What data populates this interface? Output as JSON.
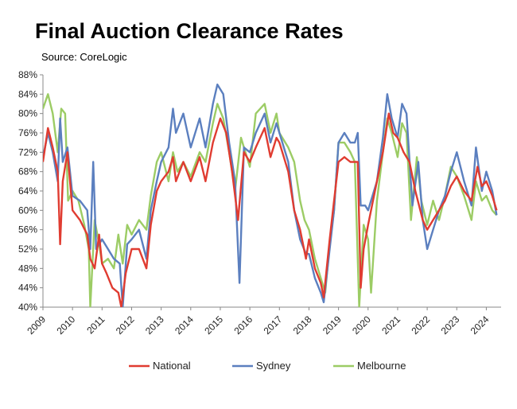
{
  "chart_data": {
    "type": "line",
    "title": "Final Auction Clearance Rates",
    "subtitle": "Source: CoreLogic",
    "xlabel": "",
    "ylabel": "",
    "x_ticks": [
      "2009",
      "2010",
      "2011",
      "2012",
      "2013",
      "2014",
      "2015",
      "2016",
      "2017",
      "2018",
      "2019",
      "2020",
      "2021",
      "2022",
      "2023",
      "2024"
    ],
    "y_ticks": [
      "40%",
      "44%",
      "48%",
      "52%",
      "56%",
      "60%",
      "64%",
      "68%",
      "72%",
      "76%",
      "80%",
      "84%",
      "88%"
    ],
    "xlim": [
      2009.0,
      2024.5
    ],
    "ylim": [
      40,
      88
    ],
    "grid": false,
    "legend": "bottom",
    "series": [
      {
        "name": "National",
        "color": "#e03c31",
        "points": [
          [
            2009.0,
            70
          ],
          [
            2009.17,
            77
          ],
          [
            2009.33,
            73
          ],
          [
            2009.5,
            68
          ],
          [
            2009.58,
            53
          ],
          [
            2009.67,
            66
          ],
          [
            2009.83,
            72
          ],
          [
            2010.0,
            60
          ],
          [
            2010.25,
            58
          ],
          [
            2010.5,
            55
          ],
          [
            2010.6,
            50
          ],
          [
            2010.75,
            48
          ],
          [
            2010.9,
            55
          ],
          [
            2011.0,
            49
          ],
          [
            2011.15,
            47
          ],
          [
            2011.35,
            44
          ],
          [
            2011.55,
            43
          ],
          [
            2011.65,
            38
          ],
          [
            2011.8,
            47
          ],
          [
            2012.0,
            52
          ],
          [
            2012.25,
            52
          ],
          [
            2012.5,
            48
          ],
          [
            2012.65,
            57
          ],
          [
            2012.85,
            64
          ],
          [
            2013.0,
            66
          ],
          [
            2013.25,
            68
          ],
          [
            2013.4,
            71
          ],
          [
            2013.5,
            66
          ],
          [
            2013.75,
            70
          ],
          [
            2014.0,
            66
          ],
          [
            2014.3,
            71
          ],
          [
            2014.5,
            66
          ],
          [
            2014.75,
            74
          ],
          [
            2015.0,
            79
          ],
          [
            2015.2,
            76
          ],
          [
            2015.4,
            68
          ],
          [
            2015.6,
            58
          ],
          [
            2015.8,
            72
          ],
          [
            2016.0,
            70
          ],
          [
            2016.2,
            73
          ],
          [
            2016.5,
            77
          ],
          [
            2016.7,
            71
          ],
          [
            2016.9,
            75
          ],
          [
            2017.0,
            74
          ],
          [
            2017.3,
            68
          ],
          [
            2017.5,
            60
          ],
          [
            2017.7,
            56
          ],
          [
            2017.9,
            50
          ],
          [
            2018.0,
            54
          ],
          [
            2018.2,
            48
          ],
          [
            2018.4,
            45
          ],
          [
            2018.5,
            42
          ],
          [
            2018.7,
            54
          ],
          [
            2018.85,
            62
          ],
          [
            2019.0,
            70
          ],
          [
            2019.2,
            71
          ],
          [
            2019.4,
            70
          ],
          [
            2019.5,
            70
          ],
          [
            2019.65,
            70
          ],
          [
            2019.75,
            44
          ],
          [
            2019.85,
            52
          ],
          [
            2020.0,
            57
          ],
          [
            2020.3,
            66
          ],
          [
            2020.5,
            72
          ],
          [
            2020.7,
            80
          ],
          [
            2020.85,
            76
          ],
          [
            2021.0,
            75
          ],
          [
            2021.2,
            72
          ],
          [
            2021.4,
            70
          ],
          [
            2021.6,
            64
          ],
          [
            2021.85,
            58
          ],
          [
            2022.0,
            56
          ],
          [
            2022.2,
            58
          ],
          [
            2022.4,
            60
          ],
          [
            2022.6,
            62
          ],
          [
            2022.8,
            65
          ],
          [
            2023.0,
            67
          ],
          [
            2023.25,
            64
          ],
          [
            2023.5,
            62
          ],
          [
            2023.7,
            69
          ],
          [
            2023.85,
            65
          ],
          [
            2024.0,
            66
          ],
          [
            2024.2,
            63
          ],
          [
            2024.35,
            60
          ]
        ]
      },
      {
        "name": "Sydney",
        "color": "#5b7fbf",
        "points": [
          [
            2009.0,
            71
          ],
          [
            2009.17,
            76
          ],
          [
            2009.33,
            72
          ],
          [
            2009.5,
            66
          ],
          [
            2009.58,
            79
          ],
          [
            2009.67,
            70
          ],
          [
            2009.83,
            73
          ],
          [
            2010.0,
            63
          ],
          [
            2010.25,
            62
          ],
          [
            2010.5,
            60
          ],
          [
            2010.6,
            52
          ],
          [
            2010.7,
            70
          ],
          [
            2010.8,
            52
          ],
          [
            2011.0,
            54
          ],
          [
            2011.2,
            52
          ],
          [
            2011.4,
            50
          ],
          [
            2011.6,
            49
          ],
          [
            2011.7,
            40
          ],
          [
            2011.85,
            53
          ],
          [
            2012.0,
            54
          ],
          [
            2012.25,
            56
          ],
          [
            2012.5,
            50
          ],
          [
            2012.65,
            60
          ],
          [
            2012.85,
            66
          ],
          [
            2013.0,
            70
          ],
          [
            2013.25,
            73
          ],
          [
            2013.4,
            81
          ],
          [
            2013.5,
            76
          ],
          [
            2013.75,
            80
          ],
          [
            2014.0,
            73
          ],
          [
            2014.3,
            79
          ],
          [
            2014.5,
            73
          ],
          [
            2014.75,
            82
          ],
          [
            2014.9,
            86
          ],
          [
            2015.1,
            84
          ],
          [
            2015.3,
            74
          ],
          [
            2015.5,
            66
          ],
          [
            2015.65,
            45
          ],
          [
            2015.8,
            73
          ],
          [
            2016.0,
            72
          ],
          [
            2016.2,
            76
          ],
          [
            2016.5,
            80
          ],
          [
            2016.7,
            74
          ],
          [
            2016.9,
            78
          ],
          [
            2017.0,
            76
          ],
          [
            2017.3,
            70
          ],
          [
            2017.5,
            60
          ],
          [
            2017.7,
            54
          ],
          [
            2017.9,
            51
          ],
          [
            2018.0,
            51
          ],
          [
            2018.2,
            46
          ],
          [
            2018.4,
            43
          ],
          [
            2018.5,
            41
          ],
          [
            2018.7,
            52
          ],
          [
            2018.85,
            60
          ],
          [
            2019.0,
            74
          ],
          [
            2019.2,
            76
          ],
          [
            2019.4,
            74
          ],
          [
            2019.55,
            74
          ],
          [
            2019.65,
            76
          ],
          [
            2019.75,
            61
          ],
          [
            2019.9,
            61
          ],
          [
            2020.0,
            60
          ],
          [
            2020.3,
            66
          ],
          [
            2020.5,
            75
          ],
          [
            2020.65,
            84
          ],
          [
            2020.8,
            79
          ],
          [
            2021.0,
            75
          ],
          [
            2021.15,
            82
          ],
          [
            2021.3,
            80
          ],
          [
            2021.5,
            61
          ],
          [
            2021.7,
            70
          ],
          [
            2021.85,
            58
          ],
          [
            2022.0,
            52
          ],
          [
            2022.2,
            56
          ],
          [
            2022.4,
            60
          ],
          [
            2022.6,
            63
          ],
          [
            2022.8,
            68
          ],
          [
            2023.0,
            72
          ],
          [
            2023.25,
            66
          ],
          [
            2023.5,
            61
          ],
          [
            2023.65,
            73
          ],
          [
            2023.85,
            64
          ],
          [
            2024.0,
            68
          ],
          [
            2024.2,
            64
          ],
          [
            2024.35,
            59
          ]
        ]
      },
      {
        "name": "Melbourne",
        "color": "#9ccc65",
        "points": [
          [
            2009.0,
            81
          ],
          [
            2009.17,
            84
          ],
          [
            2009.33,
            80
          ],
          [
            2009.5,
            72
          ],
          [
            2009.62,
            81
          ],
          [
            2009.75,
            80
          ],
          [
            2009.85,
            62
          ],
          [
            2010.0,
            64
          ],
          [
            2010.2,
            62
          ],
          [
            2010.4,
            57
          ],
          [
            2010.55,
            52
          ],
          [
            2010.6,
            40
          ],
          [
            2010.75,
            58
          ],
          [
            2010.9,
            53
          ],
          [
            2011.0,
            49
          ],
          [
            2011.2,
            50
          ],
          [
            2011.4,
            48
          ],
          [
            2011.55,
            55
          ],
          [
            2011.7,
            49
          ],
          [
            2011.85,
            57
          ],
          [
            2012.0,
            55
          ],
          [
            2012.25,
            58
          ],
          [
            2012.5,
            56
          ],
          [
            2012.65,
            63
          ],
          [
            2012.85,
            70
          ],
          [
            2013.0,
            72
          ],
          [
            2013.25,
            66
          ],
          [
            2013.4,
            72
          ],
          [
            2013.55,
            68
          ],
          [
            2013.75,
            70
          ],
          [
            2014.0,
            67
          ],
          [
            2014.3,
            72
          ],
          [
            2014.5,
            70
          ],
          [
            2014.75,
            78
          ],
          [
            2014.9,
            82
          ],
          [
            2015.1,
            79
          ],
          [
            2015.3,
            72
          ],
          [
            2015.5,
            64
          ],
          [
            2015.7,
            75
          ],
          [
            2015.9,
            71
          ],
          [
            2016.0,
            69
          ],
          [
            2016.2,
            80
          ],
          [
            2016.5,
            82
          ],
          [
            2016.7,
            76
          ],
          [
            2016.9,
            80
          ],
          [
            2017.0,
            76
          ],
          [
            2017.3,
            73
          ],
          [
            2017.5,
            70
          ],
          [
            2017.7,
            62
          ],
          [
            2017.85,
            58
          ],
          [
            2018.0,
            56
          ],
          [
            2018.2,
            50
          ],
          [
            2018.4,
            46
          ],
          [
            2018.55,
            43
          ],
          [
            2018.7,
            53
          ],
          [
            2018.85,
            60
          ],
          [
            2019.0,
            74
          ],
          [
            2019.2,
            74
          ],
          [
            2019.4,
            72
          ],
          [
            2019.55,
            70
          ],
          [
            2019.7,
            38
          ],
          [
            2019.85,
            57
          ],
          [
            2020.0,
            54
          ],
          [
            2020.1,
            43
          ],
          [
            2020.3,
            62
          ],
          [
            2020.5,
            72
          ],
          [
            2020.65,
            79
          ],
          [
            2020.8,
            76
          ],
          [
            2021.0,
            71
          ],
          [
            2021.15,
            78
          ],
          [
            2021.3,
            76
          ],
          [
            2021.45,
            58
          ],
          [
            2021.65,
            71
          ],
          [
            2021.8,
            62
          ],
          [
            2022.0,
            57
          ],
          [
            2022.2,
            62
          ],
          [
            2022.4,
            58
          ],
          [
            2022.6,
            63
          ],
          [
            2022.8,
            69
          ],
          [
            2023.0,
            67
          ],
          [
            2023.25,
            63
          ],
          [
            2023.5,
            58
          ],
          [
            2023.65,
            66
          ],
          [
            2023.85,
            62
          ],
          [
            2024.0,
            63
          ],
          [
            2024.2,
            60
          ],
          [
            2024.35,
            59
          ]
        ]
      }
    ]
  }
}
